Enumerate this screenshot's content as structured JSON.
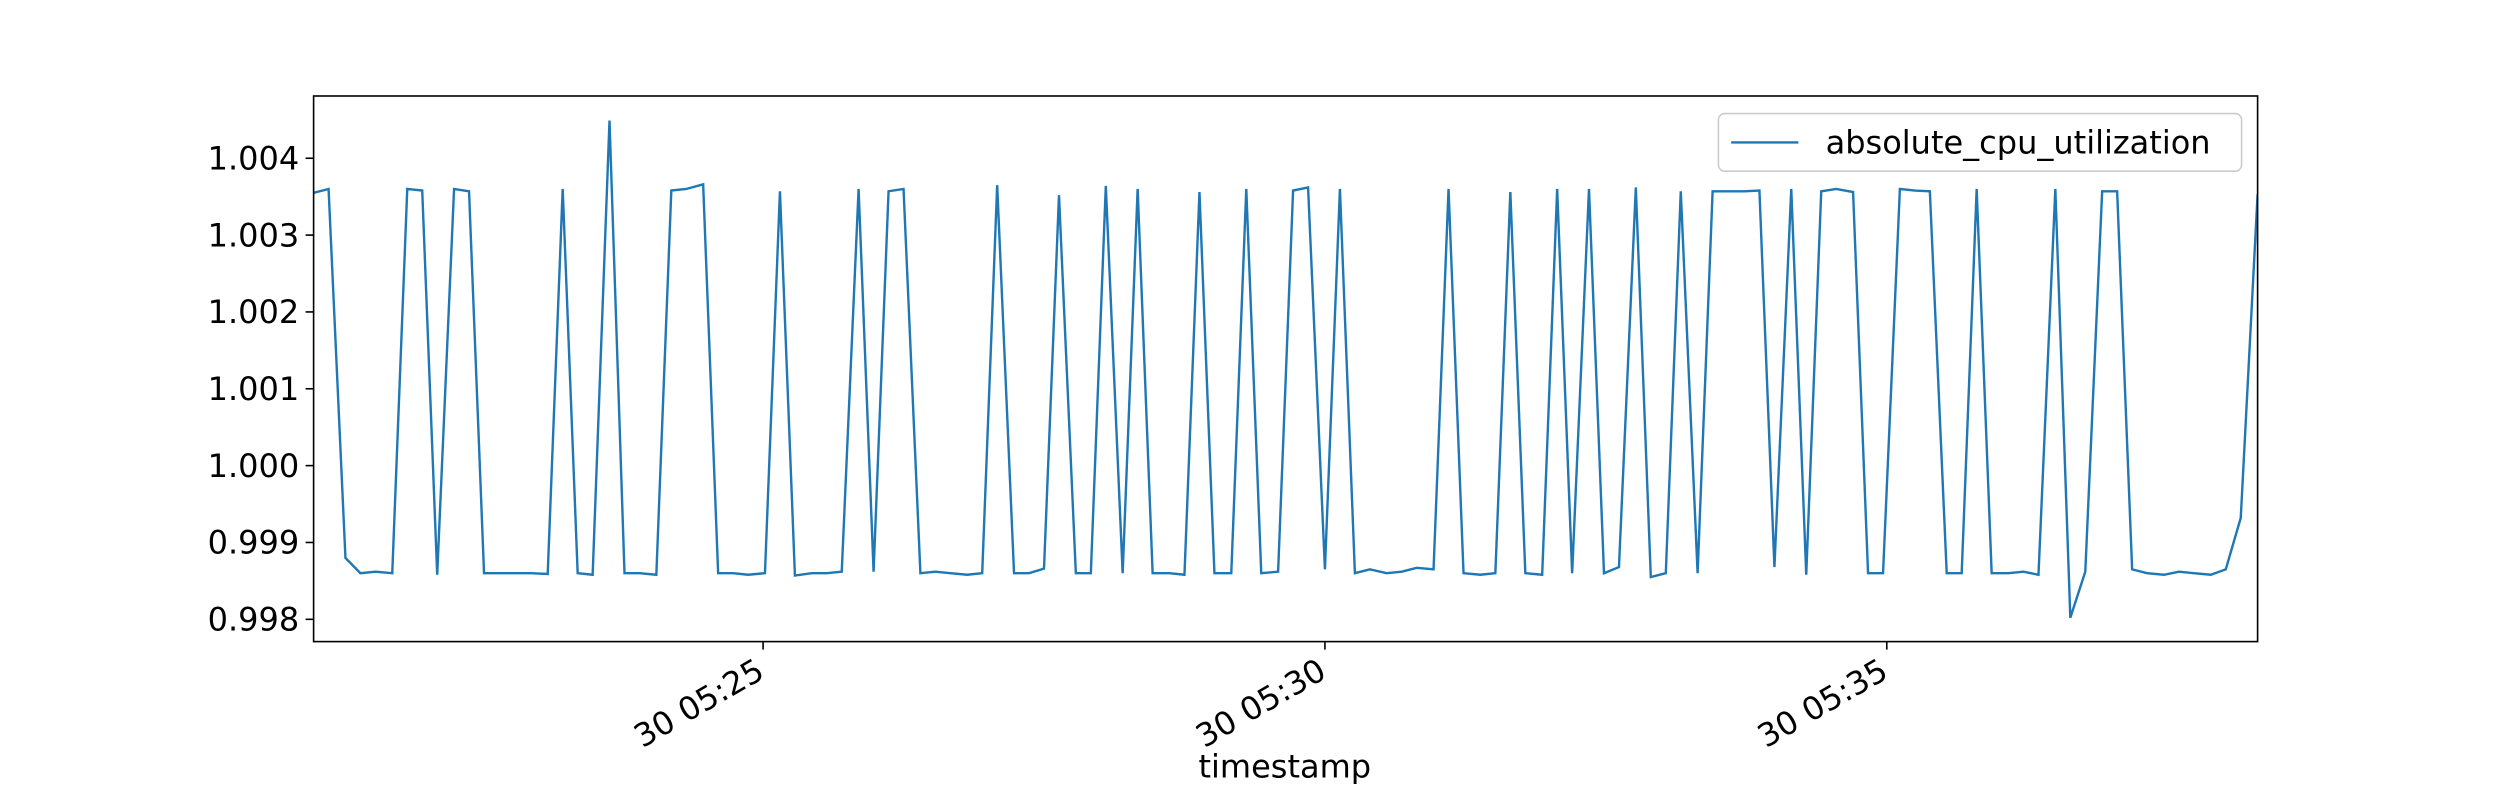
{
  "chart_data": {
    "type": "line",
    "xlabel": "timestamp",
    "x": [
      "30 05:21:00",
      "30 05:21:08",
      "30 05:21:17",
      "30 05:21:25",
      "30 05:21:33",
      "30 05:21:42",
      "30 05:21:50",
      "30 05:21:58",
      "30 05:22:06",
      "30 05:22:15",
      "30 05:22:23",
      "30 05:22:31",
      "30 05:22:40",
      "30 05:22:48",
      "30 05:22:56",
      "30 05:23:05",
      "30 05:23:13",
      "30 05:23:21",
      "30 05:23:29",
      "30 05:23:38",
      "30 05:23:46",
      "30 05:23:54",
      "30 05:24:03",
      "30 05:24:11",
      "30 05:24:19",
      "30 05:24:28",
      "30 05:24:36",
      "30 05:24:44",
      "30 05:24:52",
      "30 05:25:01",
      "30 05:25:09",
      "30 05:25:17",
      "30 05:25:26",
      "30 05:25:34",
      "30 05:25:42",
      "30 05:25:51",
      "30 05:25:59",
      "30 05:26:07",
      "30 05:26:15",
      "30 05:26:24",
      "30 05:26:32",
      "30 05:26:40",
      "30 05:26:49",
      "30 05:26:57",
      "30 05:27:05",
      "30 05:27:14",
      "30 05:27:22",
      "30 05:27:30",
      "30 05:27:38",
      "30 05:27:47",
      "30 05:27:55",
      "30 05:28:03",
      "30 05:28:12",
      "30 05:28:20",
      "30 05:28:28",
      "30 05:28:37",
      "30 05:28:45",
      "30 05:28:53",
      "30 05:29:01",
      "30 05:29:10",
      "30 05:29:18",
      "30 05:29:26",
      "30 05:29:35",
      "30 05:29:43",
      "30 05:29:51",
      "30 05:30:00",
      "30 05:30:08",
      "30 05:30:16",
      "30 05:30:24",
      "30 05:30:33",
      "30 05:30:41",
      "30 05:30:49",
      "30 05:30:58",
      "30 05:31:06",
      "30 05:31:14",
      "30 05:31:23",
      "30 05:31:31",
      "30 05:31:39",
      "30 05:31:47",
      "30 05:31:56",
      "30 05:32:04",
      "30 05:32:12",
      "30 05:32:21",
      "30 05:32:29",
      "30 05:32:37",
      "30 05:32:46",
      "30 05:32:54",
      "30 05:33:02",
      "30 05:33:10",
      "30 05:33:19",
      "30 05:33:27",
      "30 05:33:35",
      "30 05:33:44",
      "30 05:33:52",
      "30 05:34:00",
      "30 05:34:09",
      "30 05:34:17",
      "30 05:34:25",
      "30 05:34:33",
      "30 05:34:42",
      "30 05:34:50",
      "30 05:34:58",
      "30 05:35:07",
      "30 05:35:15",
      "30 05:35:23",
      "30 05:35:32",
      "30 05:35:40",
      "30 05:35:48",
      "30 05:35:56",
      "30 05:36:05",
      "30 05:36:13",
      "30 05:36:21",
      "30 05:36:30",
      "30 05:36:38",
      "30 05:36:46",
      "30 05:36:55",
      "30 05:37:03",
      "30 05:37:11",
      "30 05:37:19",
      "30 05:37:28",
      "30 05:37:36",
      "30 05:37:44",
      "30 05:37:53",
      "30 05:38:01",
      "30 05:38:09",
      "30 05:38:18"
    ],
    "series": [
      {
        "name": "absolute_cpu_utilization",
        "color": "#1f77b4",
        "values": [
          1.00355,
          1.0036,
          0.9988,
          0.9986,
          0.99862,
          0.9986,
          1.0036,
          1.00358,
          0.99858,
          1.0036,
          1.00357,
          0.9986,
          0.9986,
          0.9986,
          0.9986,
          0.99859,
          1.0036,
          0.9986,
          0.99858,
          1.00449,
          0.9986,
          0.9986,
          0.99858,
          1.00358,
          1.0036,
          1.00366,
          0.9986,
          0.9986,
          0.99858,
          0.9986,
          1.00357,
          0.99857,
          0.9986,
          0.9986,
          0.99862,
          1.0036,
          0.99862,
          1.00357,
          1.0036,
          0.9986,
          0.99862,
          0.9986,
          0.99858,
          0.9986,
          1.00365,
          0.9986,
          0.9986,
          0.99866,
          1.00352,
          0.9986,
          0.9986,
          1.00364,
          0.9986,
          1.0036,
          0.9986,
          0.9986,
          0.99858,
          1.00356,
          0.9986,
          0.9986,
          1.0036,
          0.9986,
          0.99862,
          1.00358,
          1.00362,
          0.99865,
          1.0036,
          0.9986,
          0.99865,
          0.9986,
          0.99862,
          0.99867,
          0.99865,
          1.0036,
          0.9986,
          0.99858,
          0.9986,
          1.00356,
          0.9986,
          0.99858,
          1.0036,
          0.9986,
          1.0036,
          0.9986,
          0.99868,
          1.00362,
          0.99855,
          0.9986,
          1.00357,
          0.9986,
          1.00357,
          1.00357,
          1.00357,
          1.00358,
          0.99868,
          1.0036,
          0.99858,
          1.00357,
          1.0036,
          1.00356,
          0.9986,
          0.9986,
          1.0036,
          1.00358,
          1.00357,
          0.9986,
          0.9986,
          1.0036,
          0.9986,
          0.9986,
          0.99862,
          0.99858,
          1.0036,
          0.99802,
          0.99862,
          1.00357,
          1.00357,
          0.99865,
          0.9986,
          0.99858,
          0.99862,
          0.9986,
          0.99858,
          0.99865,
          0.99932,
          1.00353
        ]
      }
    ],
    "xlim": [
      "30 05:21:00",
      "30 05:38:18"
    ],
    "xticks": [
      "30 05:25",
      "30 05:30",
      "30 05:35"
    ],
    "ylim": [
      0.99771,
      1.00481
    ],
    "yticks": [
      0.998,
      0.999,
      {
        "value": 1.0,
        "label": "1.000"
      },
      1.001,
      1.002,
      1.003,
      1.004
    ],
    "legend": "upper right"
  }
}
